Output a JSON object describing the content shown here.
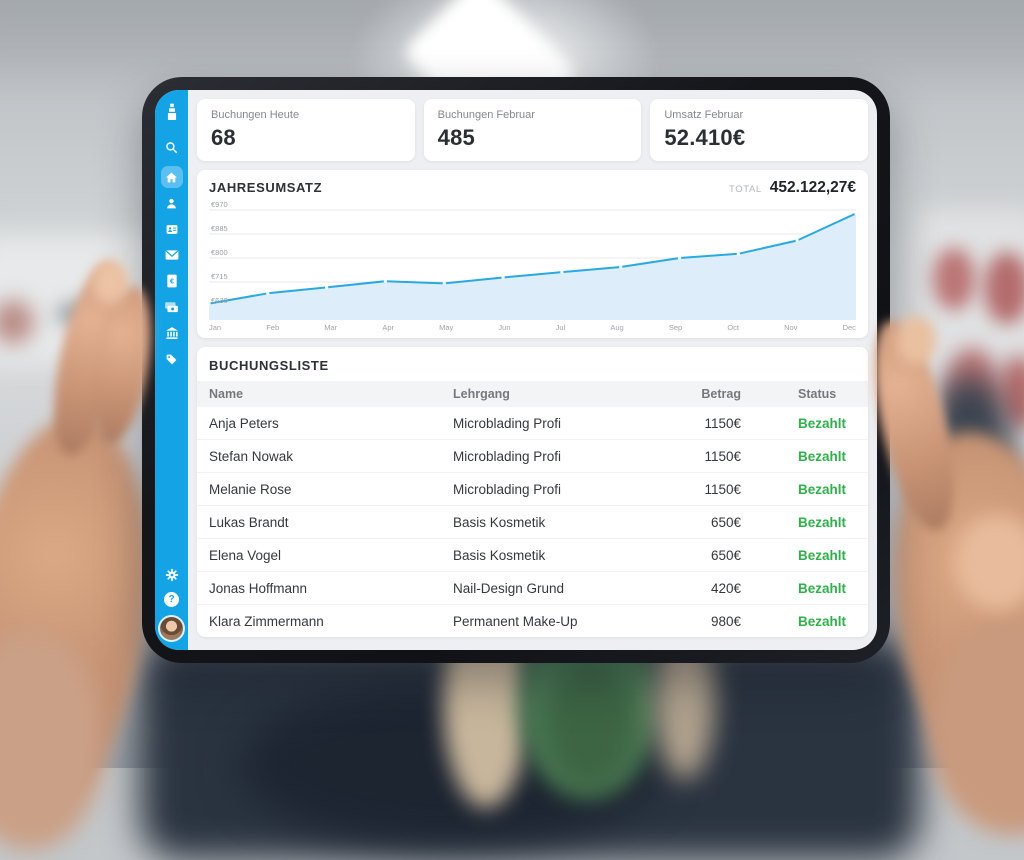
{
  "colors": {
    "sidebar": "#14a4e6",
    "sidebar_active": "#5bc0f0",
    "chart_line": "#29a9e0",
    "chart_fill": "#ddeefa",
    "status_paid": "#31af4c"
  },
  "sidebar": {
    "nav_icons": [
      "lipstick-logo",
      "search",
      "home",
      "client",
      "contact-card",
      "mail",
      "invoice",
      "payments",
      "bank",
      "tag"
    ],
    "active_item": "home",
    "bottom_icons": [
      "settings",
      "help",
      "profile"
    ],
    "help_glyph": "?"
  },
  "stat_cards": [
    {
      "label": "Buchungen Heute",
      "value": "68"
    },
    {
      "label": "Buchungen Februar",
      "value": "485"
    },
    {
      "label": "Umsatz Februar",
      "value": "52.410€"
    }
  ],
  "revenue_panel": {
    "title": "JAHRESUMSATZ",
    "total_label": "TOTAL",
    "total_value": "452.122,27€"
  },
  "chart_data": {
    "type": "area",
    "title": "JAHRESUMSATZ",
    "x": [
      "Jan",
      "Feb",
      "Mar",
      "Apr",
      "May",
      "Jun",
      "Jul",
      "Aug",
      "Sep",
      "Oct",
      "Nov",
      "Dec"
    ],
    "values": [
      638,
      675,
      696,
      718,
      710,
      731,
      750,
      768,
      800,
      815,
      862,
      958
    ],
    "ylim": [
      630,
      970
    ],
    "yticks": [
      970,
      885,
      800,
      715,
      630
    ],
    "ytick_labels": [
      "€970",
      "€885",
      "€800",
      "€715",
      "€630"
    ],
    "grid": true,
    "legend": false
  },
  "bookings": {
    "title": "BUCHUNGSLISTE",
    "columns": [
      "Name",
      "Lehrgang",
      "Betrag",
      "Status"
    ],
    "rows": [
      [
        "Anja Peters",
        "Microblading Profi",
        "1150€",
        "Bezahlt"
      ],
      [
        "Stefan Nowak",
        "Microblading Profi",
        "1150€",
        "Bezahlt"
      ],
      [
        "Melanie Rose",
        "Microblading Profi",
        "1150€",
        "Bezahlt"
      ],
      [
        "Lukas Brandt",
        "Basis Kosmetik",
        "650€",
        "Bezahlt"
      ],
      [
        "Elena Vogel",
        "Basis Kosmetik",
        "650€",
        "Bezahlt"
      ],
      [
        "Jonas Hoffmann",
        "Nail-Design Grund",
        "420€",
        "Bezahlt"
      ],
      [
        "Klara Zimmermann",
        "Permanent Make-Up",
        "980€",
        "Bezahlt"
      ]
    ]
  }
}
